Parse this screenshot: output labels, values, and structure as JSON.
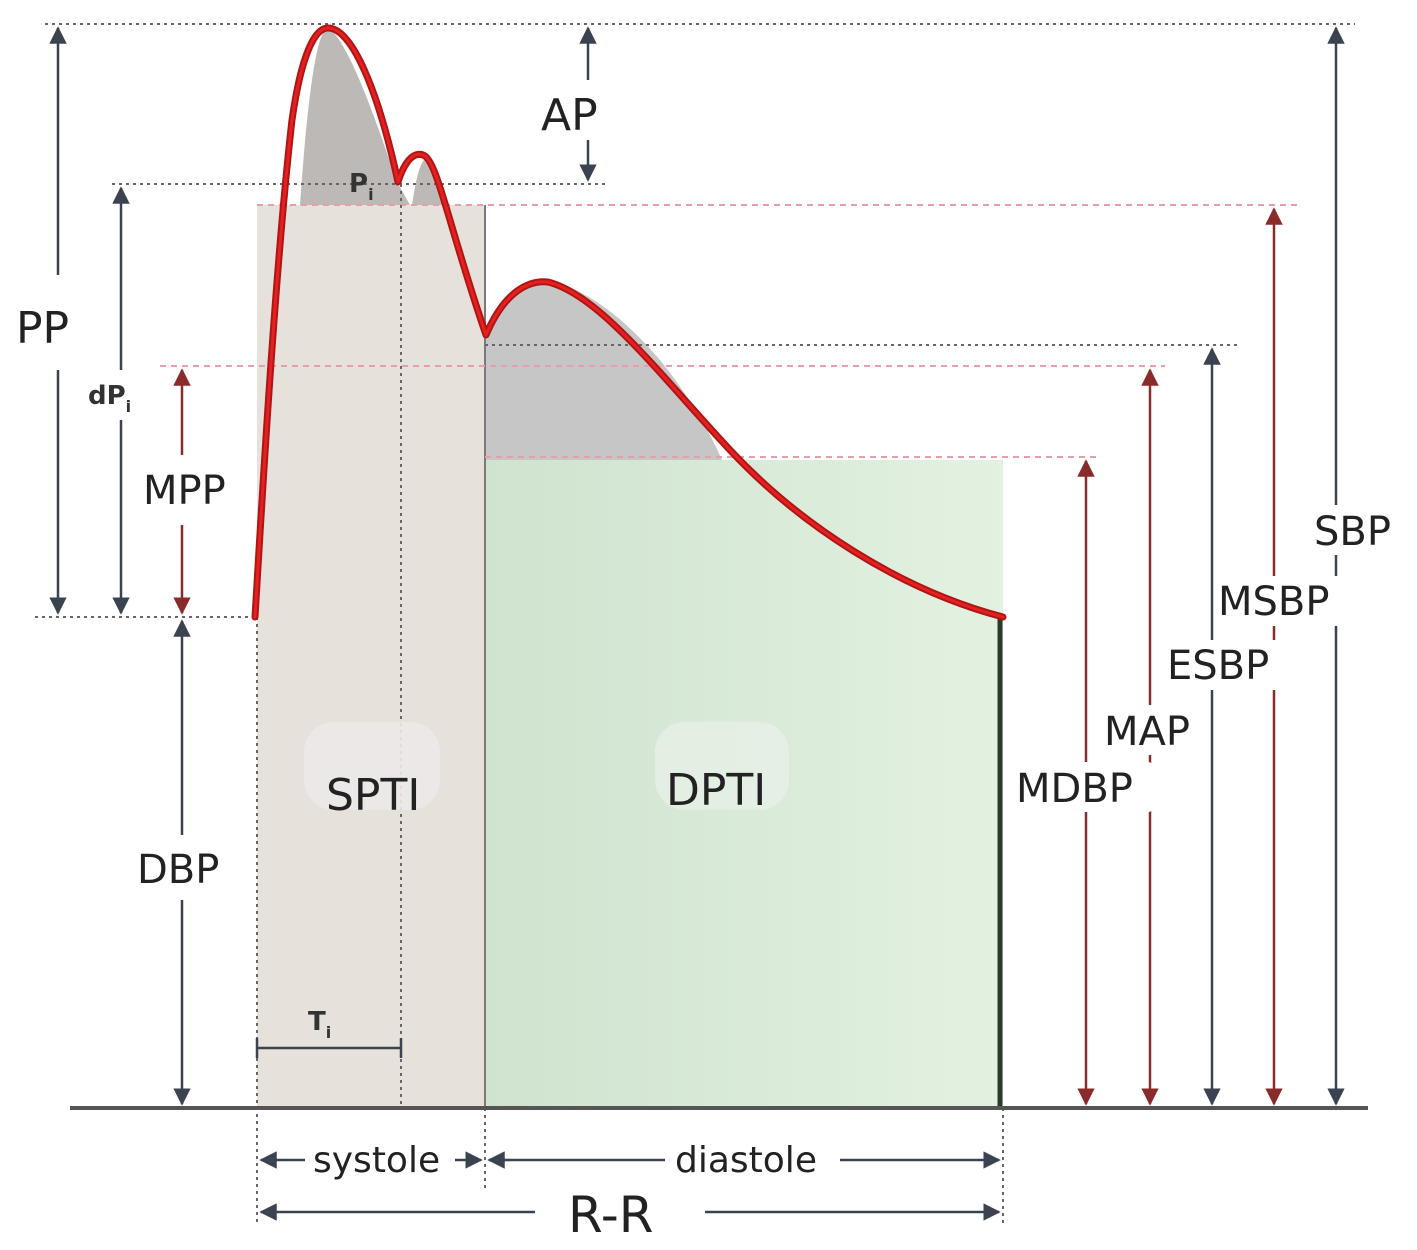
{
  "labels": {
    "ap": "AP",
    "pp": "PP",
    "dpi": "dP",
    "dpi_sub": "i",
    "pi": "P",
    "pi_sub": "i",
    "mpp": "MPP",
    "dbp": "DBP",
    "spti": "SPTI",
    "dpti": "DPTI",
    "ti": "T",
    "ti_sub": "i",
    "systole": "systole",
    "diastole": "diastole",
    "rr": "R-R",
    "mdbp": "MDBP",
    "map": "MAP",
    "esbp": "ESBP",
    "msbp": "MSBP",
    "sbp": "SBP"
  },
  "colors": {
    "waveform": "#d11a1a",
    "systolic_fill": "#e6e1da",
    "diastolic_fill": "#d3e6d3",
    "peak_shading": "#b9b6b4",
    "arrow_dark": "#3b4250",
    "arrow_red": "#8a2b2b",
    "dotted_gray": "#666666",
    "dotted_pink": "#e4a0aa"
  }
}
